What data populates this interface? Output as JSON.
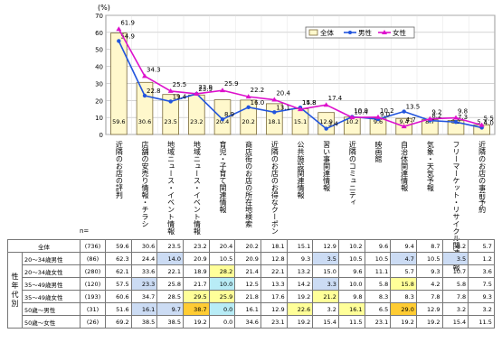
{
  "chart_data": {
    "type": "bar",
    "ylabel": "(%)",
    "n_label": "n=",
    "ylim": [
      0,
      70
    ],
    "yticks": [
      0,
      10,
      20,
      30,
      40,
      50,
      60,
      70
    ],
    "categories": [
      "近隣のお店の評判",
      "店舗の安売り情報・チラシ",
      "地域ニュース・イベント情報",
      "地域ニュース・イベント情報",
      "育児・子育て関連情報",
      "商店街のお店の所在地検索",
      "近隣のお店のお得なクーポン",
      "公共施設関連情報",
      "習い事関連情報",
      "近隣のコミュニティ",
      "映画館",
      "自治体関連情報",
      "気象・天気予報",
      "フリーマーケット・リサイクル関連情報",
      "近隣のお店の事前予約"
    ],
    "series": [
      {
        "name": "全体",
        "values": [
          59.6,
          30.6,
          23.5,
          23.2,
          20.4,
          20.2,
          18.1,
          15.1,
          12.9,
          10.2,
          9.6,
          9.4,
          8.7,
          8.2,
          5.7
        ]
      },
      {
        "name": "男性",
        "values": [
          54.9,
          22.8,
          19.4,
          23.9,
          8.9,
          16.0,
          13.1,
          15.8,
          3.4,
          10.4,
          9.0,
          13.5,
          8.2,
          7.3,
          4.0
        ]
      },
      {
        "name": "女性",
        "values": [
          61.9,
          34.3,
          25.5,
          23.9,
          25.9,
          22.2,
          20.4,
          14.8,
          17.4,
          10.0,
          10.2,
          4.7,
          9.2,
          9.8,
          5.5
        ]
      }
    ],
    "bar_value_labels": [
      "59.6",
      "30.6",
      "23.5",
      "23.2",
      "20.4",
      "20.2",
      "18.1",
      "15.1",
      "12.9",
      "10.2",
      "9.6",
      "9.4",
      "8.7",
      "8.2",
      "5.7"
    ],
    "line_value_labels": {
      "男性": [
        "54.9",
        "22.8",
        "19.4",
        "23.9",
        "8.9",
        "16.0",
        "13.1",
        "15.8",
        "3.4",
        "10.4",
        "9.0",
        "13.5",
        "8.2",
        "7.3",
        "4.0"
      ],
      "女性": [
        "61.9",
        "34.3",
        "25.5",
        "23.9",
        "25.9",
        "22.2",
        "20.4",
        "14.8",
        "17.4",
        "10.0",
        "10.2",
        "4.7",
        "9.2",
        "9.8",
        "5.5"
      ]
    },
    "legend_position": "top-right",
    "colors": {
      "bar_fill": "#fff8cc",
      "bar_stroke": "#7a6a3a",
      "male": "#2255dd",
      "female": "#dd11cc"
    },
    "table": {
      "group_label": "性年代別",
      "rows": [
        {
          "label": "全体",
          "n": "(736)",
          "values": [
            "59.6",
            "30.6",
            "23.5",
            "23.2",
            "20.4",
            "20.2",
            "18.1",
            "15.1",
            "12.9",
            "10.2",
            "9.6",
            "9.4",
            "8.7",
            "8.2",
            "5.7"
          ],
          "highlights": [
            "",
            "",
            "",
            "",
            "",
            "",
            "",
            "",
            "",
            "",
            "",
            "",
            "",
            "",
            ""
          ]
        },
        {
          "label": "20～34歳男性",
          "n": "(86)",
          "values": [
            "62.3",
            "24.4",
            "14.0",
            "20.9",
            "10.5",
            "20.9",
            "12.8",
            "9.3",
            "3.5",
            "10.5",
            "10.5",
            "4.7",
            "10.5",
            "3.5",
            "1.2"
          ],
          "highlights": [
            "",
            "",
            "blue",
            "",
            "",
            "",
            "",
            "",
            "blue",
            "",
            "",
            "blue",
            "",
            "blue",
            ""
          ]
        },
        {
          "label": "20～34歳女性",
          "n": "(280)",
          "values": [
            "62.1",
            "33.6",
            "22.1",
            "18.9",
            "28.2",
            "21.4",
            "22.1",
            "13.2",
            "15.0",
            "9.6",
            "11.1",
            "5.7",
            "9.3",
            "10.7",
            "3.6"
          ],
          "highlights": [
            "",
            "",
            "",
            "",
            "yellow",
            "",
            "",
            "",
            "",
            "",
            "",
            "",
            "",
            "",
            ""
          ]
        },
        {
          "label": "35～49歳男性",
          "n": "(120)",
          "values": [
            "57.5",
            "23.3",
            "25.8",
            "21.7",
            "10.0",
            "12.5",
            "13.3",
            "14.2",
            "3.3",
            "10.0",
            "5.8",
            "15.8",
            "4.2",
            "5.8",
            "7.5"
          ],
          "highlights": [
            "",
            "blue",
            "",
            "",
            "cyan",
            "",
            "",
            "",
            "blue",
            "",
            "",
            "yellow",
            "",
            "",
            ""
          ]
        },
        {
          "label": "35～49歳女性",
          "n": "(193)",
          "values": [
            "60.6",
            "34.7",
            "28.5",
            "29.5",
            "25.9",
            "21.8",
            "17.6",
            "19.2",
            "21.2",
            "9.8",
            "8.3",
            "8.3",
            "7.8",
            "7.8",
            "9.3"
          ],
          "highlights": [
            "",
            "",
            "",
            "yellow",
            "yellow",
            "",
            "",
            "",
            "yellow",
            "",
            "",
            "",
            "",
            "",
            ""
          ]
        },
        {
          "label": "50歳～男性",
          "n": "(31)",
          "values": [
            "51.6",
            "16.1",
            "9.7",
            "38.7",
            "0.0",
            "16.1",
            "12.9",
            "22.6",
            "3.2",
            "16.1",
            "6.5",
            "29.0",
            "12.9",
            "3.2",
            "3.2"
          ],
          "highlights": [
            "",
            "blue",
            "blue",
            "orange",
            "cyan",
            "",
            "",
            "yellow",
            "",
            "yellow",
            "",
            "orange",
            "",
            "",
            ""
          ]
        },
        {
          "label": "50歳～女性",
          "n": "(26)",
          "values": [
            "69.2",
            "38.5",
            "38.5",
            "19.2",
            "0.0",
            "34.6",
            "23.1",
            "19.2",
            "15.4",
            "11.5",
            "23.1",
            "19.2",
            "19.2",
            "15.4",
            "11.5"
          ],
          "highlights": [
            "",
            "",
            "",
            "",
            "",
            "",
            "",
            "",
            "",
            "",
            "",
            "",
            "",
            "",
            ""
          ]
        }
      ]
    }
  }
}
